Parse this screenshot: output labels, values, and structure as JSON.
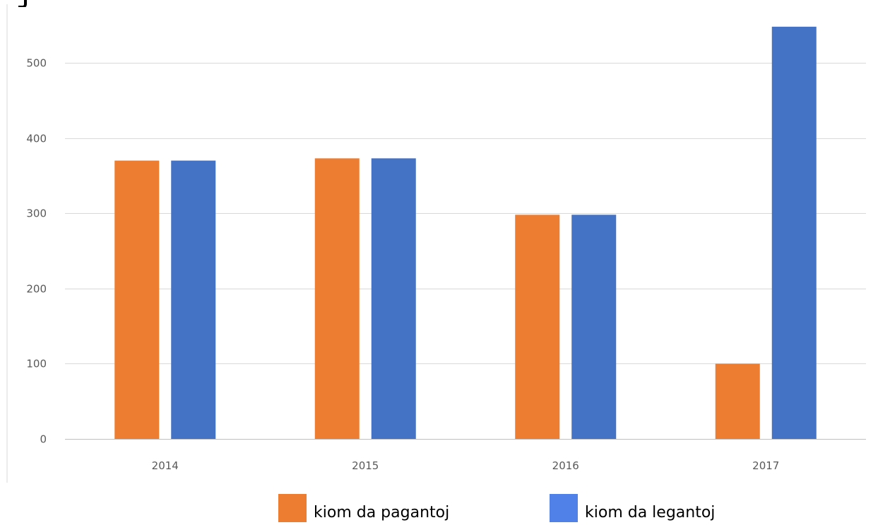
{
  "chart_data": {
    "type": "bar",
    "categories": [
      "2014",
      "2015",
      "2016",
      "2017"
    ],
    "series": [
      {
        "name": "kiom da pagantoj",
        "values": [
          370,
          373,
          298,
          100
        ],
        "color": "#ED7D31"
      },
      {
        "name": "kiom da legantoj",
        "values": [
          370,
          373,
          298,
          548
        ],
        "color": "#4472C4"
      }
    ],
    "yticks": [
      "0",
      "100",
      "200",
      "300",
      "400",
      "500"
    ],
    "ylim": [
      0,
      550
    ],
    "grid": true,
    "legend_position": "bottom",
    "legend_swatch_colors": [
      "#ED7D31",
      "#4F81E8"
    ]
  }
}
